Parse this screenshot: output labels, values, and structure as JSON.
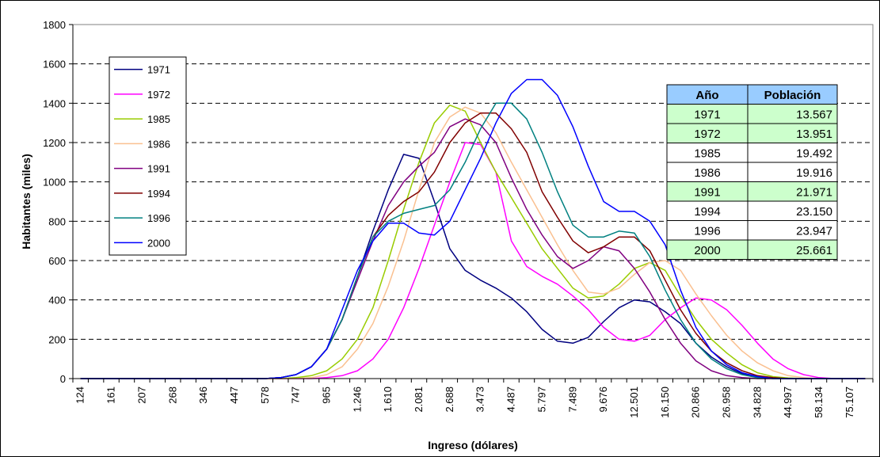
{
  "chart_data": {
    "type": "line",
    "xlabel": "Ingreso (dólares)",
    "ylabel": "Habitantes (miles)",
    "ylim": [
      0,
      1800
    ],
    "yticks": [
      0,
      200,
      400,
      600,
      800,
      1000,
      1200,
      1400,
      1600,
      1800
    ],
    "grid": "horizontal dashed",
    "legend_placement": "left",
    "xtick_labels": [
      "124",
      "161",
      "207",
      "268",
      "346",
      "447",
      "578",
      "747",
      "965",
      "1.246",
      "1.610",
      "2.081",
      "2.688",
      "3.473",
      "4.487",
      "5.797",
      "7.489",
      "9.676",
      "12.501",
      "16.150",
      "20.866",
      "26.958",
      "34.828",
      "44.997",
      "58.134",
      "75.107"
    ],
    "x_points": 52,
    "series": [
      {
        "name": "1971",
        "color": "#000080",
        "values": [
          0,
          0,
          0,
          0,
          0,
          0,
          0,
          0,
          0,
          0,
          0,
          0,
          0,
          5,
          20,
          60,
          150,
          300,
          520,
          750,
          960,
          1140,
          1120,
          900,
          660,
          550,
          500,
          460,
          410,
          340,
          250,
          190,
          180,
          210,
          290,
          360,
          400,
          390,
          340,
          280,
          180,
          110,
          60,
          25,
          8,
          2,
          0,
          0,
          0,
          0,
          0,
          0
        ]
      },
      {
        "name": "1972",
        "color": "#ff00ff",
        "values": [
          0,
          0,
          0,
          0,
          0,
          0,
          0,
          0,
          0,
          0,
          0,
          0,
          0,
          0,
          0,
          0,
          5,
          15,
          40,
          100,
          200,
          360,
          560,
          780,
          1000,
          1200,
          1190,
          1050,
          700,
          570,
          520,
          480,
          420,
          350,
          260,
          200,
          190,
          220,
          300,
          360,
          410,
          400,
          350,
          270,
          180,
          100,
          50,
          20,
          5,
          0,
          0,
          0
        ]
      },
      {
        "name": "1985",
        "color": "#99cc00",
        "values": [
          0,
          0,
          0,
          0,
          0,
          0,
          0,
          0,
          0,
          0,
          0,
          0,
          0,
          0,
          5,
          15,
          40,
          100,
          200,
          360,
          600,
          860,
          1100,
          1300,
          1390,
          1360,
          1200,
          1050,
          920,
          790,
          660,
          560,
          460,
          410,
          420,
          480,
          560,
          590,
          550,
          420,
          300,
          200,
          130,
          70,
          30,
          10,
          3,
          0,
          0,
          0,
          0,
          0
        ]
      },
      {
        "name": "1986",
        "color": "#fac090",
        "values": [
          0,
          0,
          0,
          0,
          0,
          0,
          0,
          0,
          0,
          0,
          0,
          0,
          0,
          0,
          0,
          5,
          20,
          60,
          150,
          280,
          470,
          700,
          960,
          1200,
          1330,
          1380,
          1350,
          1250,
          1100,
          960,
          820,
          680,
          550,
          440,
          430,
          460,
          530,
          590,
          600,
          550,
          430,
          320,
          220,
          140,
          80,
          40,
          15,
          5,
          0,
          0,
          0,
          0
        ]
      },
      {
        "name": "1991",
        "color": "#800080",
        "values": [
          0,
          0,
          0,
          0,
          0,
          0,
          0,
          0,
          0,
          0,
          0,
          0,
          0,
          5,
          20,
          60,
          150,
          300,
          500,
          700,
          880,
          1000,
          1080,
          1150,
          1280,
          1320,
          1290,
          1200,
          1020,
          860,
          730,
          620,
          560,
          600,
          670,
          650,
          560,
          440,
          300,
          180,
          90,
          40,
          15,
          5,
          0,
          0,
          0,
          0,
          0,
          0,
          0,
          0
        ]
      },
      {
        "name": "1994",
        "color": "#800000",
        "values": [
          0,
          0,
          0,
          0,
          0,
          0,
          0,
          0,
          0,
          0,
          0,
          0,
          0,
          5,
          20,
          60,
          150,
          300,
          520,
          720,
          830,
          900,
          950,
          1050,
          1200,
          1300,
          1350,
          1350,
          1270,
          1150,
          950,
          820,
          700,
          640,
          670,
          720,
          720,
          650,
          500,
          350,
          230,
          140,
          80,
          40,
          15,
          5,
          0,
          0,
          0,
          0,
          0,
          0
        ]
      },
      {
        "name": "1996",
        "color": "#008080",
        "values": [
          0,
          0,
          0,
          0,
          0,
          0,
          0,
          0,
          0,
          0,
          0,
          0,
          0,
          5,
          20,
          60,
          150,
          300,
          520,
          720,
          800,
          840,
          860,
          880,
          960,
          1100,
          1270,
          1400,
          1400,
          1320,
          1150,
          950,
          780,
          720,
          720,
          750,
          740,
          620,
          450,
          300,
          180,
          100,
          50,
          20,
          5,
          0,
          0,
          0,
          0,
          0,
          0,
          0
        ]
      },
      {
        "name": "2000",
        "color": "#0000ff",
        "values": [
          0,
          0,
          0,
          0,
          0,
          0,
          0,
          0,
          0,
          0,
          0,
          0,
          0,
          5,
          20,
          60,
          150,
          350,
          550,
          700,
          790,
          790,
          740,
          730,
          800,
          960,
          1120,
          1300,
          1450,
          1520,
          1520,
          1440,
          1280,
          1080,
          900,
          850,
          850,
          800,
          680,
          450,
          260,
          140,
          70,
          30,
          10,
          0,
          0,
          0,
          0,
          0,
          0,
          0
        ]
      }
    ]
  },
  "table": {
    "headers": [
      "Año",
      "Población"
    ],
    "rows": [
      {
        "year": "1971",
        "pop": "13.567",
        "highlight": true
      },
      {
        "year": "1972",
        "pop": "13.951",
        "highlight": true
      },
      {
        "year": "1985",
        "pop": "19.492",
        "highlight": false
      },
      {
        "year": "1986",
        "pop": "19.916",
        "highlight": false
      },
      {
        "year": "1991",
        "pop": "21.971",
        "highlight": true
      },
      {
        "year": "1994",
        "pop": "23.150",
        "highlight": false
      },
      {
        "year": "1996",
        "pop": "23.947",
        "highlight": false
      },
      {
        "year": "2000",
        "pop": "25.661",
        "highlight": true
      }
    ],
    "header_color": "#99ccff",
    "highlight_color": "#ccffcc"
  }
}
